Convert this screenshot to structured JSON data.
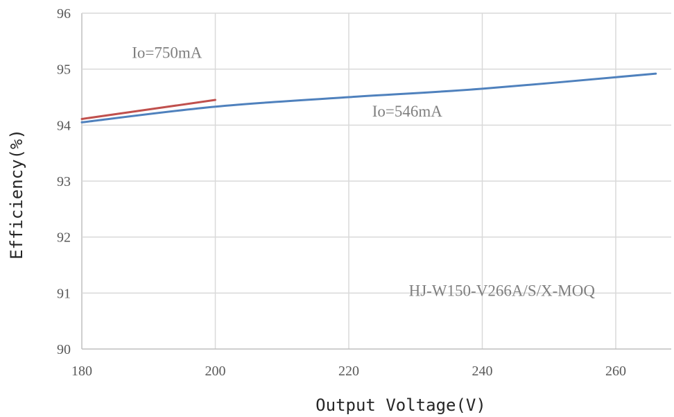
{
  "chart_data": {
    "type": "line",
    "xlabel": "Output Voltage(V)",
    "ylabel": "Efficiency(%)",
    "xlim": [
      180,
      266
    ],
    "ylim": [
      90,
      96
    ],
    "x_ticks": [
      180,
      200,
      220,
      240,
      260
    ],
    "y_ticks": [
      90,
      91,
      92,
      93,
      94,
      95,
      96
    ],
    "grid": true,
    "series": [
      {
        "name": "Io=546mA",
        "color": "#4f81bd",
        "x": [
          180,
          200,
          220,
          240,
          266
        ],
        "y": [
          94.05,
          94.33,
          94.5,
          94.65,
          94.92
        ]
      },
      {
        "name": "Io=750mA",
        "color": "#c0504d",
        "x": [
          180,
          200
        ],
        "y": [
          94.11,
          94.45
        ]
      }
    ],
    "annotations": [
      {
        "text": "Io=750mA",
        "x": 187.5,
        "y": 95.2
      },
      {
        "text": "Io=546mA",
        "x": 223.5,
        "y": 94.15
      },
      {
        "text": "HJ-W150-V266A/S/X-MOQ",
        "x": 229,
        "y": 90.95
      }
    ]
  }
}
